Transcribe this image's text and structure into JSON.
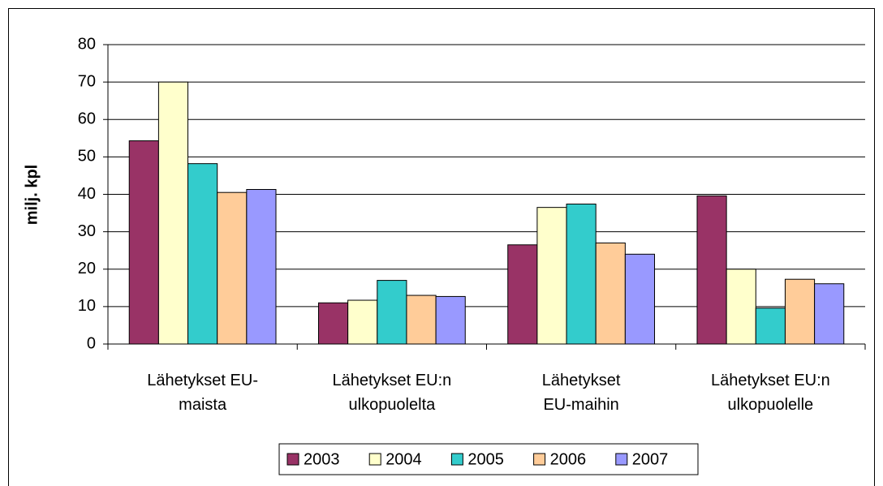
{
  "chart_data": {
    "type": "bar",
    "y_label": "milj. kpl",
    "categories": [
      "Lähetykset EU-\nmaista",
      "Lähetykset EU:n\nulkopuolelta",
      "Lähetykset\nEU-maihin",
      "Lähetykset EU:n\nulkopuolelle"
    ],
    "series": [
      {
        "name": "2003",
        "color": "#993366",
        "values": [
          54.3,
          11,
          26.5,
          39.6
        ]
      },
      {
        "name": "2004",
        "color": "#ffffcc",
        "values": [
          70,
          11.7,
          36.5,
          20
        ]
      },
      {
        "name": "2005",
        "color": "#33cccc",
        "values": [
          48.2,
          17,
          37.4,
          9.6
        ]
      },
      {
        "name": "2006",
        "color": "#ffcc99",
        "values": [
          40.5,
          13,
          27,
          17.3
        ]
      },
      {
        "name": "2007",
        "color": "#9999ff",
        "values": [
          41.3,
          12.7,
          24,
          16.1
        ]
      }
    ],
    "ylim": [
      0,
      80
    ],
    "yticks": [
      0,
      10,
      20,
      30,
      40,
      50,
      60,
      70,
      80
    ],
    "grid": true,
    "legend": "bottom"
  }
}
